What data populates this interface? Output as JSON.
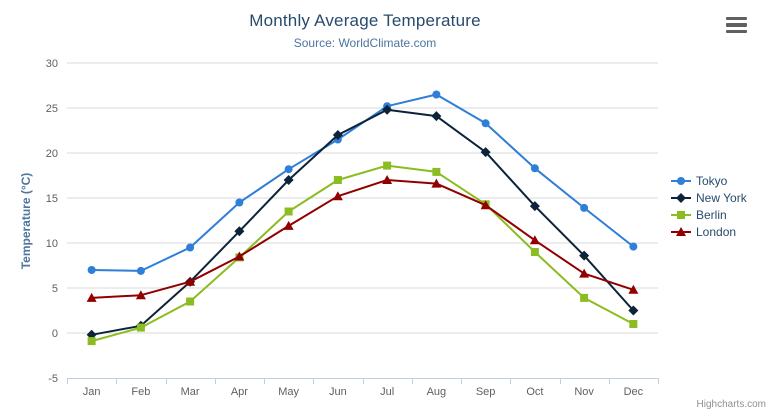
{
  "credits": "Highcharts.com",
  "chart_data": {
    "type": "line",
    "title": "Monthly Average Temperature",
    "subtitle": "Source: WorldClimate.com",
    "xlabel": "",
    "ylabel": "Temperature (°C)",
    "categories": [
      "Jan",
      "Feb",
      "Mar",
      "Apr",
      "May",
      "Jun",
      "Jul",
      "Aug",
      "Sep",
      "Oct",
      "Nov",
      "Dec"
    ],
    "ylim": [
      -5,
      30
    ],
    "ytick_interval": 5,
    "grid": true,
    "legend_position": "right",
    "series": [
      {
        "name": "Tokyo",
        "color": "#2f7ed8",
        "marker": "circle",
        "values": [
          7.0,
          6.9,
          9.5,
          14.5,
          18.2,
          21.5,
          25.2,
          26.5,
          23.3,
          18.3,
          13.9,
          9.6
        ]
      },
      {
        "name": "New York",
        "color": "#0d233a",
        "marker": "diamond",
        "values": [
          -0.2,
          0.8,
          5.7,
          11.3,
          17.0,
          22.0,
          24.8,
          24.1,
          20.1,
          14.1,
          8.6,
          2.5
        ]
      },
      {
        "name": "Berlin",
        "color": "#8bbc21",
        "marker": "square",
        "values": [
          -0.9,
          0.6,
          3.5,
          8.4,
          13.5,
          17.0,
          18.6,
          17.9,
          14.3,
          9.0,
          3.9,
          1.0
        ]
      },
      {
        "name": "London",
        "color": "#910000",
        "marker": "triangle",
        "values": [
          3.9,
          4.2,
          5.7,
          8.5,
          11.9,
          15.2,
          17.0,
          16.6,
          14.2,
          10.3,
          6.6,
          4.8
        ]
      }
    ],
    "colors": {
      "grid_line": "#d8d8d8",
      "axis_line": "#c0d0e0",
      "axis_label": "#606060",
      "title": "#274b6d",
      "subtitle": "#4d759e",
      "legend_text": "#274b6d",
      "credits_text": "#909090"
    }
  }
}
